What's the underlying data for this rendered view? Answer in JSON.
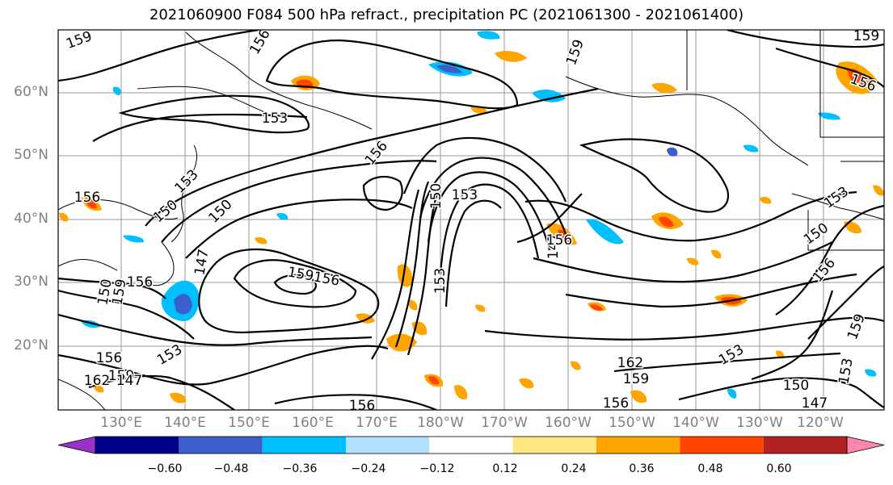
{
  "title": "2021060900 F084 500 hPa refract., precipitation PC (2021061300 - 2021061400)",
  "lat_labels": [
    "60°N",
    "50°N",
    "40°N",
    "30°N",
    "20°N"
  ],
  "lon_labels": [
    "130°E",
    "140°E",
    "150°E",
    "160°E",
    "170°E",
    "180°W",
    "170°W",
    "160°W",
    "150°W",
    "140°W",
    "130°W",
    "120°W"
  ],
  "contour_labels": [
    "159",
    "156",
    "153",
    "156",
    "159",
    "156",
    "153",
    "150",
    "150",
    "147",
    "156",
    "159",
    "156",
    "150",
    "159",
    "150",
    "153",
    "147",
    "153",
    "156",
    "162",
    "159",
    "156",
    "162",
    "159",
    "156",
    "153",
    "150",
    "147",
    "156",
    "159",
    "153",
    "150",
    "156",
    "159",
    "153",
    "147",
    "153",
    "156"
  ],
  "colorbar": {
    "ticks": [
      "−0.60",
      "−0.48",
      "−0.36",
      "−0.24",
      "−0.12",
      "0.12",
      "0.24",
      "0.36",
      "0.48",
      "0.60"
    ],
    "colors": [
      "#9932cc",
      "#00008b",
      "#3a5fcd",
      "#00bfff",
      "#b0e2ff",
      "#ffffff",
      "#ffe680",
      "#ffa500",
      "#ff4500",
      "#b22222",
      "#ff88aa"
    ]
  }
}
